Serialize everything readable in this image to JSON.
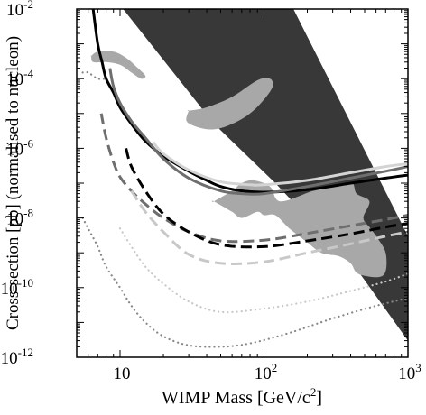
{
  "chart_data": {
    "type": "line",
    "xlabel": "WIMP Mass [GeV/c2]",
    "xlabel_parts": {
      "main": "WIMP Mass [GeV/c",
      "sup": "2",
      "end": "]"
    },
    "ylabel": "Cross-section [pb] (normalised to nucleon)",
    "x_scale": "log",
    "y_scale": "log",
    "xlim": [
      5,
      1000
    ],
    "ylim": [
      1e-12,
      0.01
    ],
    "x_ticks": [
      {
        "value": 10,
        "base": "10",
        "exp": ""
      },
      {
        "value": 100,
        "base": "10",
        "exp": "2"
      },
      {
        "value": 1000,
        "base": "10",
        "exp": "3"
      }
    ],
    "y_ticks": [
      {
        "value": 0.01,
        "base": "10",
        "exp": "-2"
      },
      {
        "value": 0.0001,
        "base": "10",
        "exp": "-4"
      },
      {
        "value": 1e-06,
        "base": "10",
        "exp": "-6"
      },
      {
        "value": 1e-08,
        "base": "10",
        "exp": "-8"
      },
      {
        "value": 1e-10,
        "base": "10",
        "exp": "-10"
      },
      {
        "value": 1e-12,
        "base": "10",
        "exp": "-12"
      }
    ],
    "grid": false,
    "legend": "none",
    "regions": [
      {
        "fill": "#383838",
        "points": [
          [
            10.5,
            0.01
          ],
          [
            160,
            0.01
          ],
          [
            1000,
            3e-09
          ],
          [
            1000,
            3e-12
          ],
          [
            450,
            3e-10
          ],
          [
            120,
            1e-07
          ],
          [
            45,
            5e-06
          ],
          [
            10.5,
            0.01
          ]
        ]
      },
      {
        "fill": "#a8a8a8",
        "points": [
          [
            6.3,
            0.00045
          ],
          [
            7,
            0.0006
          ],
          [
            9,
            0.0006
          ],
          [
            11,
            0.0004
          ],
          [
            13,
            0.00022
          ],
          [
            15,
            0.00012
          ],
          [
            14,
            0.0001
          ],
          [
            12,
            0.00015
          ],
          [
            10,
            0.00025
          ],
          [
            8,
            0.0003
          ],
          [
            6.5,
            0.0003
          ],
          [
            6.3,
            0.00045
          ]
        ]
      },
      {
        "fill": "#a8a8a8",
        "points": [
          [
            30,
            1.2e-05
          ],
          [
            40,
            1.5e-05
          ],
          [
            60,
            3e-05
          ],
          [
            90,
            9e-05
          ],
          [
            110,
            0.0001
          ],
          [
            115,
            6e-05
          ],
          [
            100,
            2.5e-05
          ],
          [
            80,
            1e-05
          ],
          [
            60,
            5e-06
          ],
          [
            45,
            3.5e-06
          ],
          [
            35,
            4e-06
          ],
          [
            29,
            6e-06
          ],
          [
            30,
            1.2e-05
          ]
        ]
      },
      {
        "fill": "#a8a8a8",
        "points": [
          [
            45,
            3e-08
          ],
          [
            60,
            1.5e-08
          ],
          [
            70,
            1e-08
          ],
          [
            90,
            1.5e-08
          ],
          [
            100,
            1.2e-08
          ],
          [
            120,
            1.2e-08
          ],
          [
            150,
            5e-09
          ],
          [
            200,
            2e-09
          ],
          [
            250,
            1e-09
          ],
          [
            330,
            8e-10
          ],
          [
            400,
            5e-10
          ],
          [
            450,
            2.5e-10
          ],
          [
            620,
            2e-10
          ],
          [
            700,
            3e-10
          ],
          [
            700,
            1e-09
          ],
          [
            620,
            2.5e-09
          ],
          [
            550,
            5e-09
          ],
          [
            490,
            1e-08
          ],
          [
            540,
            3e-08
          ],
          [
            440,
            5e-08
          ],
          [
            410,
            1e-07
          ],
          [
            330,
            8e-08
          ],
          [
            220,
            6e-08
          ],
          [
            130,
            3e-08
          ],
          [
            110,
            8e-08
          ],
          [
            85,
            1.2e-07
          ],
          [
            70,
            1e-07
          ],
          [
            60,
            6e-08
          ],
          [
            45,
            3e-08
          ]
        ]
      }
    ],
    "series": [
      {
        "stroke": "#000000",
        "style": "solid",
        "width": 3,
        "points": [
          [
            6.5,
            0.01
          ],
          [
            7,
            0.001
          ],
          [
            7.5,
            0.0003
          ],
          [
            8,
            0.0001
          ],
          [
            9,
            4e-05
          ],
          [
            10,
            1.5e-05
          ],
          [
            12,
            5e-06
          ],
          [
            15,
            1.6e-06
          ],
          [
            20,
            6e-07
          ],
          [
            30,
            2.2e-07
          ],
          [
            40,
            1.2e-07
          ],
          [
            50,
            8e-08
          ],
          [
            70,
            6e-08
          ],
          [
            100,
            5.5e-08
          ],
          [
            200,
            6.5e-08
          ],
          [
            400,
            1e-07
          ],
          [
            700,
            1.4e-07
          ],
          [
            1000,
            1.7e-07
          ]
        ]
      },
      {
        "stroke": "#6e6e6e",
        "style": "solid",
        "width": 3,
        "points": [
          [
            8.5,
            0.0002
          ],
          [
            9,
            6e-05
          ],
          [
            10,
            2e-05
          ],
          [
            12,
            6e-06
          ],
          [
            15,
            2e-06
          ],
          [
            20,
            5e-07
          ],
          [
            30,
            1.4e-07
          ],
          [
            50,
            6e-08
          ],
          [
            70,
            5e-08
          ],
          [
            100,
            5e-08
          ],
          [
            200,
            8e-08
          ],
          [
            400,
            1.4e-07
          ],
          [
            700,
            2.2e-07
          ],
          [
            1000,
            3e-07
          ]
        ]
      },
      {
        "stroke": "#d4d4d4",
        "style": "solid",
        "width": 3,
        "points": [
          [
            17,
            1.5e-06
          ],
          [
            20,
            7e-07
          ],
          [
            30,
            2.4e-07
          ],
          [
            50,
            1.1e-07
          ],
          [
            80,
            9e-08
          ],
          [
            100,
            9e-08
          ],
          [
            200,
            1.2e-07
          ],
          [
            400,
            2e-07
          ],
          [
            700,
            3e-07
          ],
          [
            1000,
            3.6e-07
          ]
        ]
      },
      {
        "stroke": "#6e6e6e",
        "style": "dashed",
        "width": 3,
        "points": [
          [
            7.4,
            1e-05
          ],
          [
            8,
            2e-06
          ],
          [
            9,
            4e-07
          ],
          [
            10,
            1.5e-07
          ],
          [
            12,
            6e-08
          ],
          [
            15,
            2.5e-08
          ],
          [
            20,
            1e-08
          ],
          [
            30,
            4e-09
          ],
          [
            50,
            2.2e-09
          ],
          [
            100,
            2.3e-09
          ],
          [
            200,
            3.6e-09
          ],
          [
            400,
            6e-09
          ],
          [
            700,
            9e-09
          ],
          [
            1000,
            1.2e-08
          ]
        ]
      },
      {
        "stroke": "#000000",
        "style": "dashed",
        "width": 3,
        "points": [
          [
            11,
            1e-06
          ],
          [
            12,
            3e-07
          ],
          [
            15,
            6e-08
          ],
          [
            20,
            1.3e-08
          ],
          [
            30,
            4e-09
          ],
          [
            50,
            1.7e-09
          ],
          [
            100,
            1.5e-09
          ],
          [
            200,
            2.2e-09
          ],
          [
            400,
            3.5e-09
          ],
          [
            700,
            5.5e-09
          ],
          [
            1000,
            7e-09
          ]
        ]
      },
      {
        "stroke": "#c8c8c8",
        "style": "dashed",
        "width": 3,
        "points": [
          [
            12,
            6e-08
          ],
          [
            15,
            1.5e-08
          ],
          [
            20,
            4e-09
          ],
          [
            30,
            9e-10
          ],
          [
            50,
            5e-10
          ],
          [
            100,
            5.5e-10
          ],
          [
            200,
            1e-09
          ],
          [
            400,
            1.8e-09
          ],
          [
            700,
            3e-09
          ],
          [
            1000,
            4e-09
          ]
        ]
      },
      {
        "stroke": "#888888",
        "style": "dotted",
        "width": 2.2,
        "points": [
          [
            5.5,
            0.00015
          ],
          [
            6,
            0.00015
          ],
          [
            7,
            0.0001
          ],
          [
            8,
            0.0001
          ]
        ]
      },
      {
        "stroke": "#888888",
        "style": "dotted",
        "width": 2.2,
        "points": [
          [
            5.5,
            1e-08
          ],
          [
            6,
            5e-09
          ],
          [
            7,
            1.5e-09
          ],
          [
            8,
            4e-10
          ],
          [
            10,
            1e-10
          ],
          [
            12,
            3e-11
          ],
          [
            15,
            1e-11
          ],
          [
            20,
            4e-12
          ],
          [
            30,
            2.2e-12
          ],
          [
            50,
            2e-12
          ],
          [
            80,
            2.5e-12
          ],
          [
            150,
            5e-12
          ],
          [
            300,
            1.3e-11
          ],
          [
            600,
            3e-11
          ],
          [
            1000,
            5e-11
          ]
        ]
      },
      {
        "stroke": "#c8c8c8",
        "style": "dotted",
        "width": 2.2,
        "points": [
          [
            10,
            5e-09
          ],
          [
            12,
            1.5e-09
          ],
          [
            15,
            4e-10
          ],
          [
            20,
            1.3e-10
          ],
          [
            30,
            4e-11
          ],
          [
            50,
            2e-11
          ],
          [
            100,
            2.5e-11
          ],
          [
            200,
            4e-11
          ],
          [
            400,
            8e-11
          ],
          [
            700,
            1.5e-10
          ],
          [
            1000,
            2.5e-10
          ]
        ]
      }
    ]
  }
}
